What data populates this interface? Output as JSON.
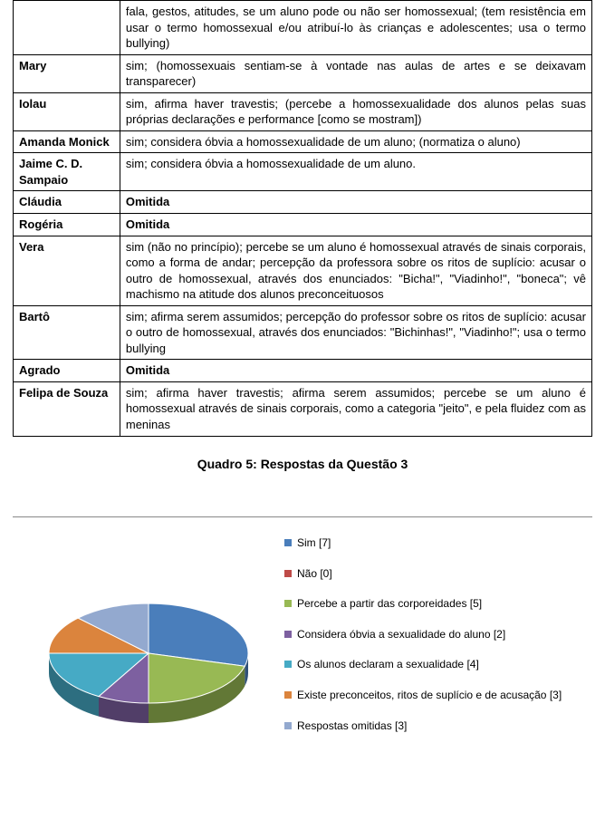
{
  "table": {
    "rows": [
      {
        "name": "",
        "content": "fala, gestos, atitudes, se um aluno pode ou não ser homossexual; (tem resistência em usar o termo homossexual e/ou atribuí-lo às crianças e adolescentes; usa o termo bullying)"
      },
      {
        "name": "Mary",
        "content": "sim; (homossexuais sentiam-se à vontade nas aulas de artes e se deixavam transparecer)"
      },
      {
        "name": "Iolau",
        "content": "sim, afirma haver travestis; (percebe a homossexualidade dos alunos pelas suas próprias declarações e performance [como se mostram])"
      },
      {
        "name": "Amanda Monick",
        "content": "sim; considera óbvia a homossexualidade de um aluno; (normatiza o aluno)"
      },
      {
        "name": "Jaime C. D. Sampaio",
        "content": "sim; considera óbvia a homossexualidade de um aluno."
      },
      {
        "name": "Cláudia",
        "content": "Omitida",
        "bold": true
      },
      {
        "name": "Rogéria",
        "content": "Omitida",
        "bold": true
      },
      {
        "name": "Vera",
        "content": "sim (não no princípio); percebe se um aluno é homossexual através de sinais corporais, como a forma de andar; percepção da professora sobre os ritos de suplício: acusar o outro de homossexual, através dos enunciados: \"Bicha!\", \"Viadinho!\", \"boneca\"; vê machismo na atitude dos alunos preconceituosos"
      },
      {
        "name": "Bartô",
        "content": "sim; afirma serem assumidos; percepção do professor sobre os ritos de suplício: acusar o outro de homossexual, através dos enunciados: \"Bichinhas!\", \"Viadinho!\"; usa o termo bullying"
      },
      {
        "name": "Agrado",
        "content": "Omitida",
        "bold": true
      },
      {
        "name": "Felipa de Souza",
        "content": "sim; afirma haver travestis; afirma serem assumidos; percebe se um aluno é homossexual através de sinais corporais, como a categoria \"jeito\", e pela fluidez com as meninas"
      }
    ]
  },
  "caption": "Quadro 5: Respostas da Questão 3",
  "chart": {
    "type": "pie",
    "is_3d": true,
    "background_color": "#ffffff",
    "slices": [
      {
        "label": "Sim [7]",
        "value": 7,
        "color": "#4a7ebb"
      },
      {
        "label": "Não [0]",
        "value": 0,
        "color": "#be4b48"
      },
      {
        "label": "Percebe a partir das corporeidades [5]",
        "value": 5,
        "color": "#98b954"
      },
      {
        "label": "Considera óbvia a sexualidade do aluno [2]",
        "value": 2,
        "color": "#7d60a0"
      },
      {
        "label": "Os alunos declaram a sexualidade [4]",
        "value": 4,
        "color": "#46aac5"
      },
      {
        "label": "Existe preconceitos, ritos de suplício e de acusação [3]",
        "value": 3,
        "color": "#db843d"
      },
      {
        "label": "Respostas omitidas [3]",
        "value": 3,
        "color": "#93a9cf"
      }
    ],
    "legend_fontsize": 12,
    "legend_marker_size": 8
  }
}
